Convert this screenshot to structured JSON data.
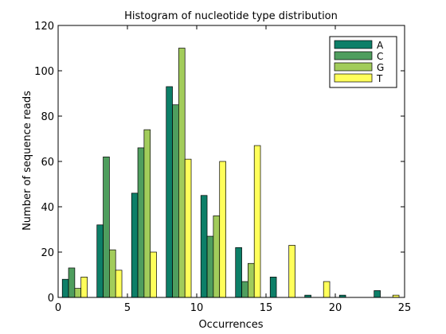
{
  "chart_data": {
    "type": "bar",
    "title": "Histogram of nucleotide type distribution",
    "xlabel": "Occurrences",
    "ylabel": "Number of sequence reads",
    "xlim": [
      0,
      25
    ],
    "ylim": [
      0,
      120
    ],
    "xticks": [
      0,
      5,
      10,
      15,
      20,
      25
    ],
    "yticks": [
      0,
      20,
      40,
      60,
      80,
      100,
      120
    ],
    "grid": false,
    "legend_position": "top-right",
    "bin_centers": [
      1.2,
      3.7,
      6.2,
      8.7,
      11.2,
      13.7,
      16.2,
      18.7,
      21.2,
      23.7
    ],
    "series": [
      {
        "name": "A",
        "color": "#0d7f68",
        "values": [
          8,
          32,
          46,
          93,
          45,
          22,
          9,
          1,
          1,
          3
        ]
      },
      {
        "name": "C",
        "color": "#4f9e5e",
        "values": [
          13,
          62,
          66,
          85,
          27,
          7,
          0,
          0,
          0,
          0
        ]
      },
      {
        "name": "G",
        "color": "#a2cc5b",
        "values": [
          4,
          21,
          74,
          110,
          36,
          15,
          0,
          0,
          0,
          0
        ]
      },
      {
        "name": "T",
        "color": "#ffff5a",
        "values": [
          9,
          12,
          20,
          61,
          60,
          67,
          23,
          7,
          0,
          1
        ]
      }
    ]
  }
}
